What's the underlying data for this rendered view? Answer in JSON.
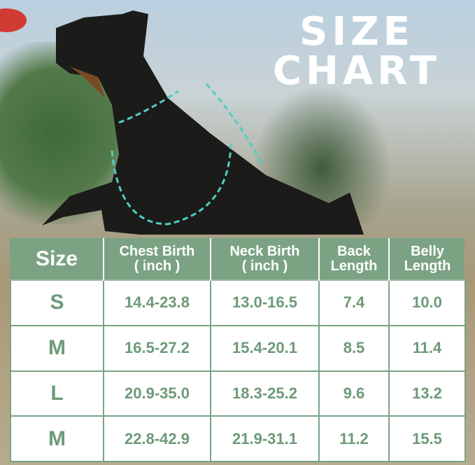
{
  "title": [
    "SIZE",
    "CHART"
  ],
  "colors": {
    "header_green": "#7ba383",
    "cell_text": "#6d9a78"
  },
  "table": {
    "headers": [
      "Size",
      "Chest Birth\n( inch )",
      "Neck Birth\n( inch )",
      "Back\nLength",
      "Belly\nLength"
    ],
    "rows": [
      [
        "S",
        "14.4-23.8",
        "13.0-16.5",
        "7.4",
        "10.0"
      ],
      [
        "M",
        "16.5-27.2",
        "15.4-20.1",
        "8.5",
        "11.4"
      ],
      [
        "L",
        "20.9-35.0",
        "18.3-25.2",
        "9.6",
        "13.2"
      ],
      [
        "M",
        "22.8-42.9",
        "21.9-31.1",
        "11.2",
        "15.5"
      ]
    ]
  }
}
